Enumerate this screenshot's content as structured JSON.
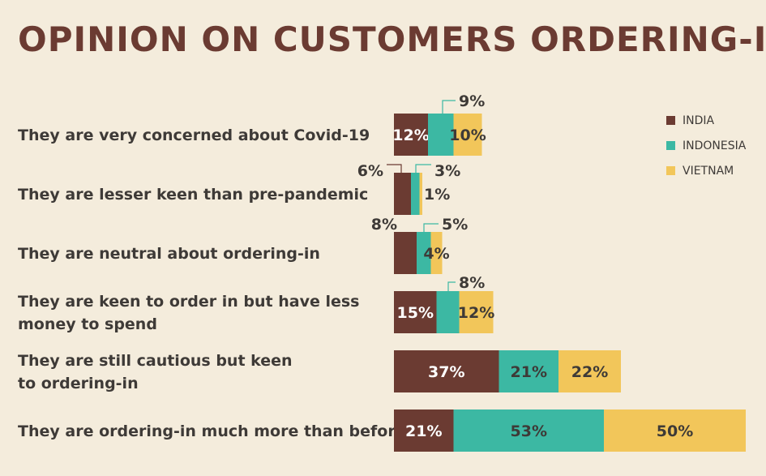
{
  "chart_data": {
    "type": "bar",
    "stacked": true,
    "orientation": "horizontal",
    "title": "OPINION ON CUSTOMERS ORDERING-IN",
    "legend_position": "top-right",
    "series": [
      {
        "name": "INDIA",
        "color": "#6b3b32",
        "values": [
          12,
          6,
          8,
          15,
          37,
          21
        ]
      },
      {
        "name": "INDONESIA",
        "color": "#3cb8a3",
        "values": [
          9,
          3,
          5,
          8,
          21,
          53
        ]
      },
      {
        "name": "VIETNAM",
        "color": "#f2c65a",
        "values": [
          10,
          1,
          4,
          12,
          22,
          50
        ]
      }
    ],
    "categories": [
      [
        "They are very concerned about Covid-19"
      ],
      [
        "They are lesser keen than pre-pandemic"
      ],
      [
        "They are neutral about ordering-in"
      ],
      [
        "They are keen to order in but have less",
        "money to spend"
      ],
      [
        "They are still cautious but keen",
        "to ordering-in"
      ],
      [
        "They are ordering-in much more than before"
      ]
    ],
    "value_suffix": "%"
  }
}
